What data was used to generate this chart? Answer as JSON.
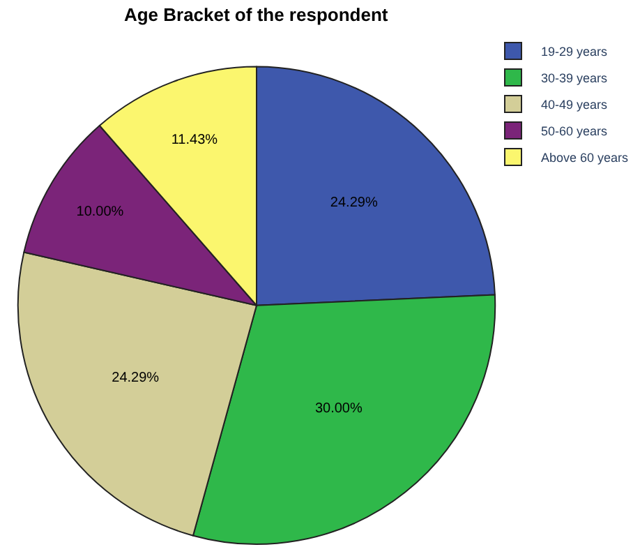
{
  "chart_data": {
    "type": "pie",
    "title": "Age Bracket of the respondent",
    "categories": [
      "19-29 years",
      "30-39 years",
      "40-49 years",
      "50-60 years",
      "Above 60 years"
    ],
    "values": [
      24.29,
      30.0,
      24.29,
      10.0,
      11.43
    ],
    "value_labels": [
      "24.29%",
      "30.00%",
      "24.29%",
      "10.00%",
      "11.43%"
    ],
    "colors": [
      "#3e58ac",
      "#2fb84a",
      "#d3ce98",
      "#7b2479",
      "#fbf66e"
    ],
    "legend": "top right"
  }
}
